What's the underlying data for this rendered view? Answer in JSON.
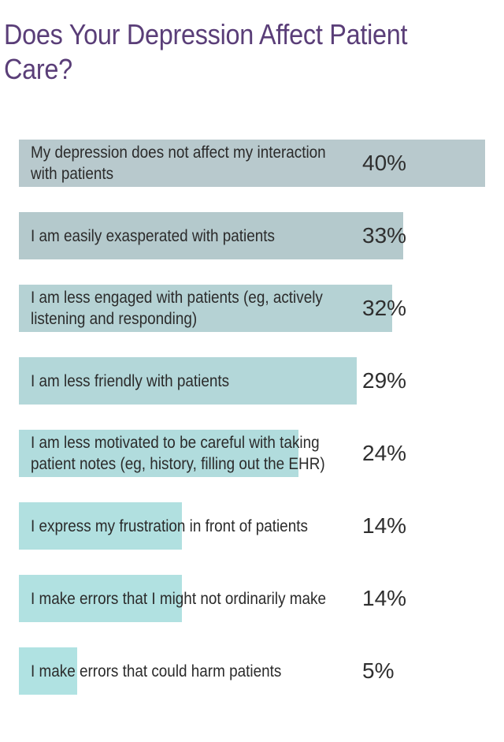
{
  "title": "Does Your Depression Affect Patient Care?",
  "chart_data": {
    "type": "bar",
    "orientation": "horizontal",
    "title": "Does Your Depression Affect Patient Care?",
    "xlim": [
      0,
      40
    ],
    "categories": [
      "My depression does not affect my interaction with patients",
      "I am easily exasperated with patients",
      "I am less engaged with patients (eg, actively listening and responding)",
      "I am less friendly with patients",
      "I am less motivated to be careful with taking patient notes (eg, history, filling out the EHR)",
      "I express my frustration in front of patients",
      "I make errors that I might not ordinarily make",
      "I make errors that could harm patients"
    ],
    "values": [
      40,
      33,
      32,
      29,
      24,
      14,
      14,
      5
    ],
    "value_labels": [
      "40%",
      "33%",
      "32%",
      "29%",
      "24%",
      "14%",
      "14%",
      "5%"
    ],
    "bar_colors": [
      "#b8c9cd",
      "#b4c9cc",
      "#b5d2d4",
      "#b3d7d9",
      "#b1dcdd",
      "#b1e0e0",
      "#b1e1e1",
      "#b0e2e2"
    ]
  }
}
